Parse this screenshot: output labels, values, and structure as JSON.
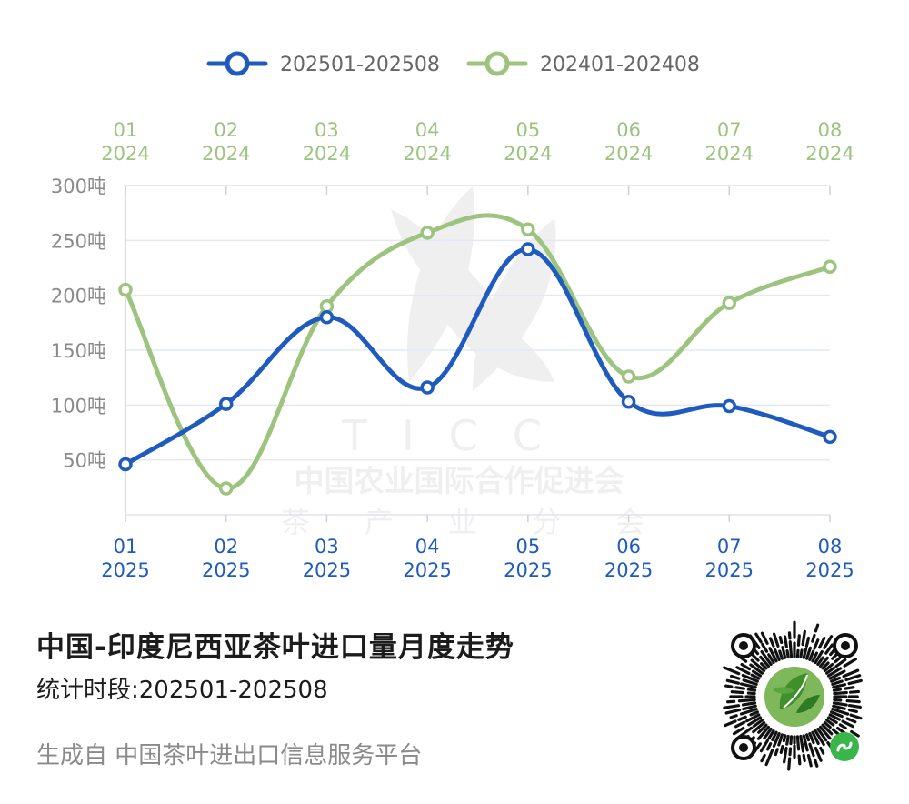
{
  "chart_data": {
    "type": "line",
    "categories": [
      "01",
      "02",
      "03",
      "04",
      "05",
      "06",
      "07",
      "08"
    ],
    "bottom_axis_year": "2025",
    "top_axis_year": "2024",
    "y_unit": "吨",
    "y_ticks": [
      50,
      100,
      150,
      200,
      250,
      300
    ],
    "ylim": [
      0,
      300
    ],
    "grid": true,
    "legend_position": "top-center",
    "series": [
      {
        "name": "202501-202508",
        "color": "#1f5bbf",
        "axis": "bottom",
        "values": [
          46,
          101,
          180,
          116,
          242,
          103,
          99,
          71
        ]
      },
      {
        "name": "202401-202408",
        "color": "#9cc47e",
        "axis": "top",
        "values": [
          205,
          24,
          190,
          257,
          260,
          126,
          193,
          226
        ]
      }
    ]
  },
  "watermark": {
    "logo": "TICC",
    "line1": "中国农业国际合作促进会",
    "line2": [
      "茶",
      "产",
      "业",
      "分",
      "会"
    ]
  },
  "footer": {
    "title": "中国-印度尼西亚茶叶进口量月度走势",
    "subtitle": "统计时段:202501-202508",
    "source": "生成自 中国茶叶进出口信息服务平台"
  },
  "qr": {
    "icon": "mini-program-qr-code",
    "badge_icon": "mini-program-icon"
  }
}
